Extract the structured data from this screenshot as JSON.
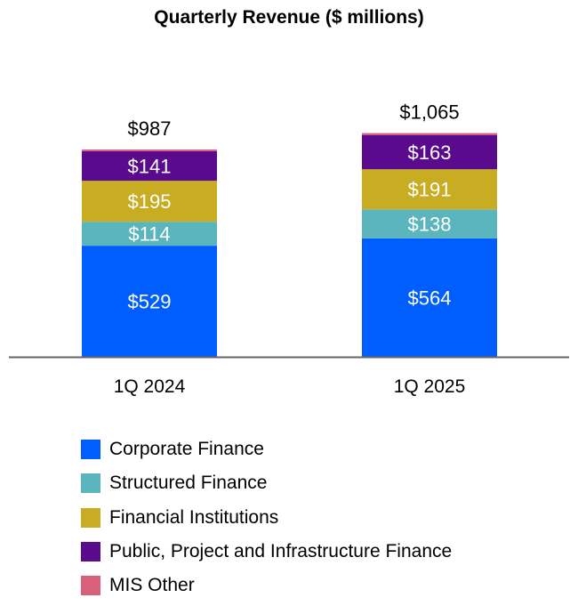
{
  "chart_data": {
    "type": "bar",
    "stacked": true,
    "title": "Quarterly Revenue ($ millions)",
    "categories": [
      "1Q 2024",
      "1Q 2025"
    ],
    "totals": [
      987,
      1065
    ],
    "total_labels": [
      "$987",
      "$1,065"
    ],
    "series": [
      {
        "name": "Corporate Finance",
        "values": [
          529,
          564
        ],
        "labels": [
          "$529",
          "$564"
        ],
        "color": "#005EFF"
      },
      {
        "name": "Structured Finance",
        "values": [
          114,
          138
        ],
        "labels": [
          "$114",
          "$138"
        ],
        "color": "#5BB5BC"
      },
      {
        "name": "Financial Institutions",
        "values": [
          195,
          191
        ],
        "labels": [
          "$195",
          "$191"
        ],
        "color": "#C8AC22"
      },
      {
        "name": "Public, Project and Infrastructure Finance",
        "values": [
          141,
          163
        ],
        "labels": [
          "$141",
          "$163"
        ],
        "color": "#5A0A8C"
      },
      {
        "name": "MIS Other",
        "values": [
          8,
          9
        ],
        "labels": [
          "",
          ""
        ],
        "color": "#D9607A"
      }
    ],
    "ylim": [
      0,
      1065
    ],
    "grid": false,
    "legend_position": "bottom"
  }
}
